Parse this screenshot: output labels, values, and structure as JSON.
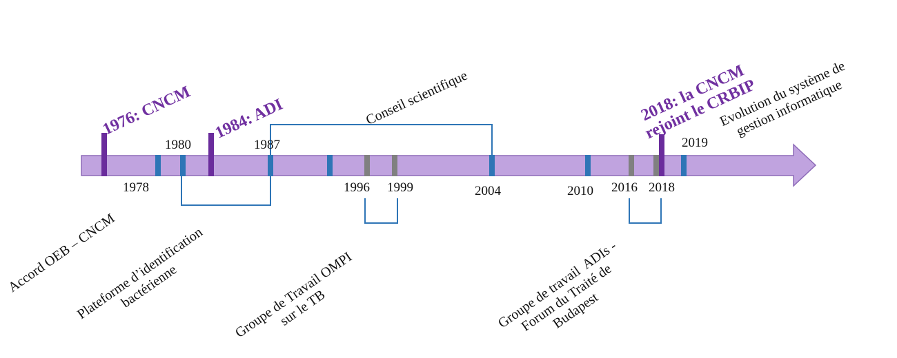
{
  "colors": {
    "arrow_fill": "#c0a3df",
    "arrow_stroke": "#8d6bb8",
    "tick_blue": "#2e75b6",
    "tick_gray": "#808080",
    "tick_purple": "#6a2c9c",
    "bracket": "#2e75b6",
    "highlight_text": "#7030a0"
  },
  "years": {
    "y1978": "1978",
    "y1980": "1980",
    "y1987": "1987",
    "y1996": "1996",
    "y1999": "1999",
    "y2004": "2004",
    "y2010": "2010",
    "y2016": "2016",
    "y2018": "2018",
    "y2019": "2019"
  },
  "highlights": {
    "cncm_1976": "1976: CNCM",
    "adi_1984": "1984: ADI",
    "crbip_2018": "2018: la CNCM\nrejoint le CRBIP"
  },
  "events": {
    "accord": "Accord OEB – CNCM",
    "plateforme": "Plateforme d’identification\nbactérienne",
    "conseil": "Conseil scientifique",
    "groupe_ompi": "Groupe de Travail OMPI\nsur le TB",
    "groupe_adis": "Groupe de travail  ADIs -\nForum du Traité de\nBudapest",
    "evolution": "Evolution du système de\ngestion informatique"
  }
}
